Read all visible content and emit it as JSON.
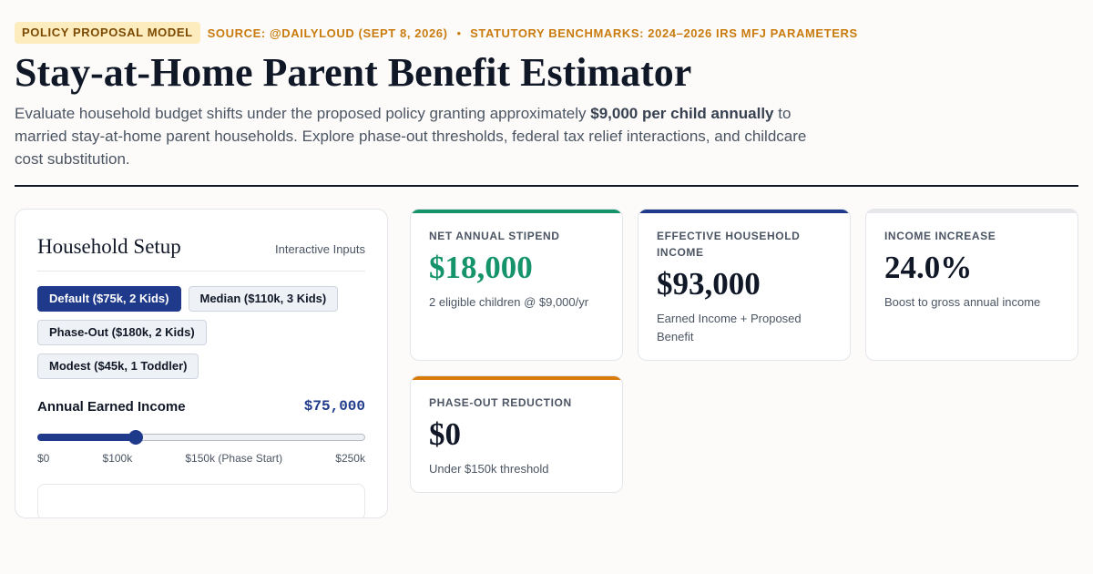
{
  "header": {
    "tag": "POLICY PROPOSAL MODEL",
    "source": "SOURCE: @DAILYLOUD (SEPT 8, 2026)",
    "separator": "•",
    "benchmarks": "STATUTORY BENCHMARKS: 2024–2026 IRS MFJ PARAMETERS",
    "title": "Stay-at-Home Parent Benefit Estimator",
    "lead_before": "Evaluate household budget shifts under the proposed policy granting approximately ",
    "lead_bold": "$9,000 per child annually",
    "lead_after": " to married stay-at-home parent households. Explore phase-out thresholds, federal tax relief interactions, and childcare cost substitution."
  },
  "setup": {
    "title": "Household Setup",
    "subtitle": "Interactive Inputs",
    "presets": [
      {
        "label": "Default ($75k, 2 Kids)",
        "active": true
      },
      {
        "label": "Median ($110k, 3 Kids)",
        "active": false
      },
      {
        "label": "Phase-Out ($180k, 2 Kids)",
        "active": false
      },
      {
        "label": "Modest ($45k, 1 Toddler)",
        "active": false
      }
    ],
    "income_label": "Annual Earned Income",
    "income_value": "$75,000",
    "income_min": 0,
    "income_max": 250000,
    "income_current": 75000,
    "ticks": [
      "$0",
      "$100k",
      "$150k (Phase Start)",
      "$250k"
    ]
  },
  "metrics": [
    {
      "label": "NET ANNUAL STIPEND",
      "value": "$18,000",
      "note": "2 eligible children @ $9,000/yr",
      "accent": "#15946b",
      "value_color": "#15946b"
    },
    {
      "label": "EFFECTIVE HOUSEHOLD INCOME",
      "value": "$93,000",
      "note": "Earned Income + Proposed Benefit",
      "accent": "#1f3a8a",
      "value_color": "#101828"
    },
    {
      "label": "INCOME INCREASE",
      "value": "24.0%",
      "note": "Boost to gross annual income",
      "accent": "#e5e7eb",
      "value_color": "#101828"
    },
    {
      "label": "PHASE-OUT REDUCTION",
      "value": "$0",
      "note": "Under $150k threshold",
      "accent": "#d97b0b",
      "value_color": "#101828"
    }
  ],
  "colors": {
    "brand_navy": "#1f3a8a",
    "accent_gold": "#c97b0e",
    "positive_green": "#15946b"
  }
}
